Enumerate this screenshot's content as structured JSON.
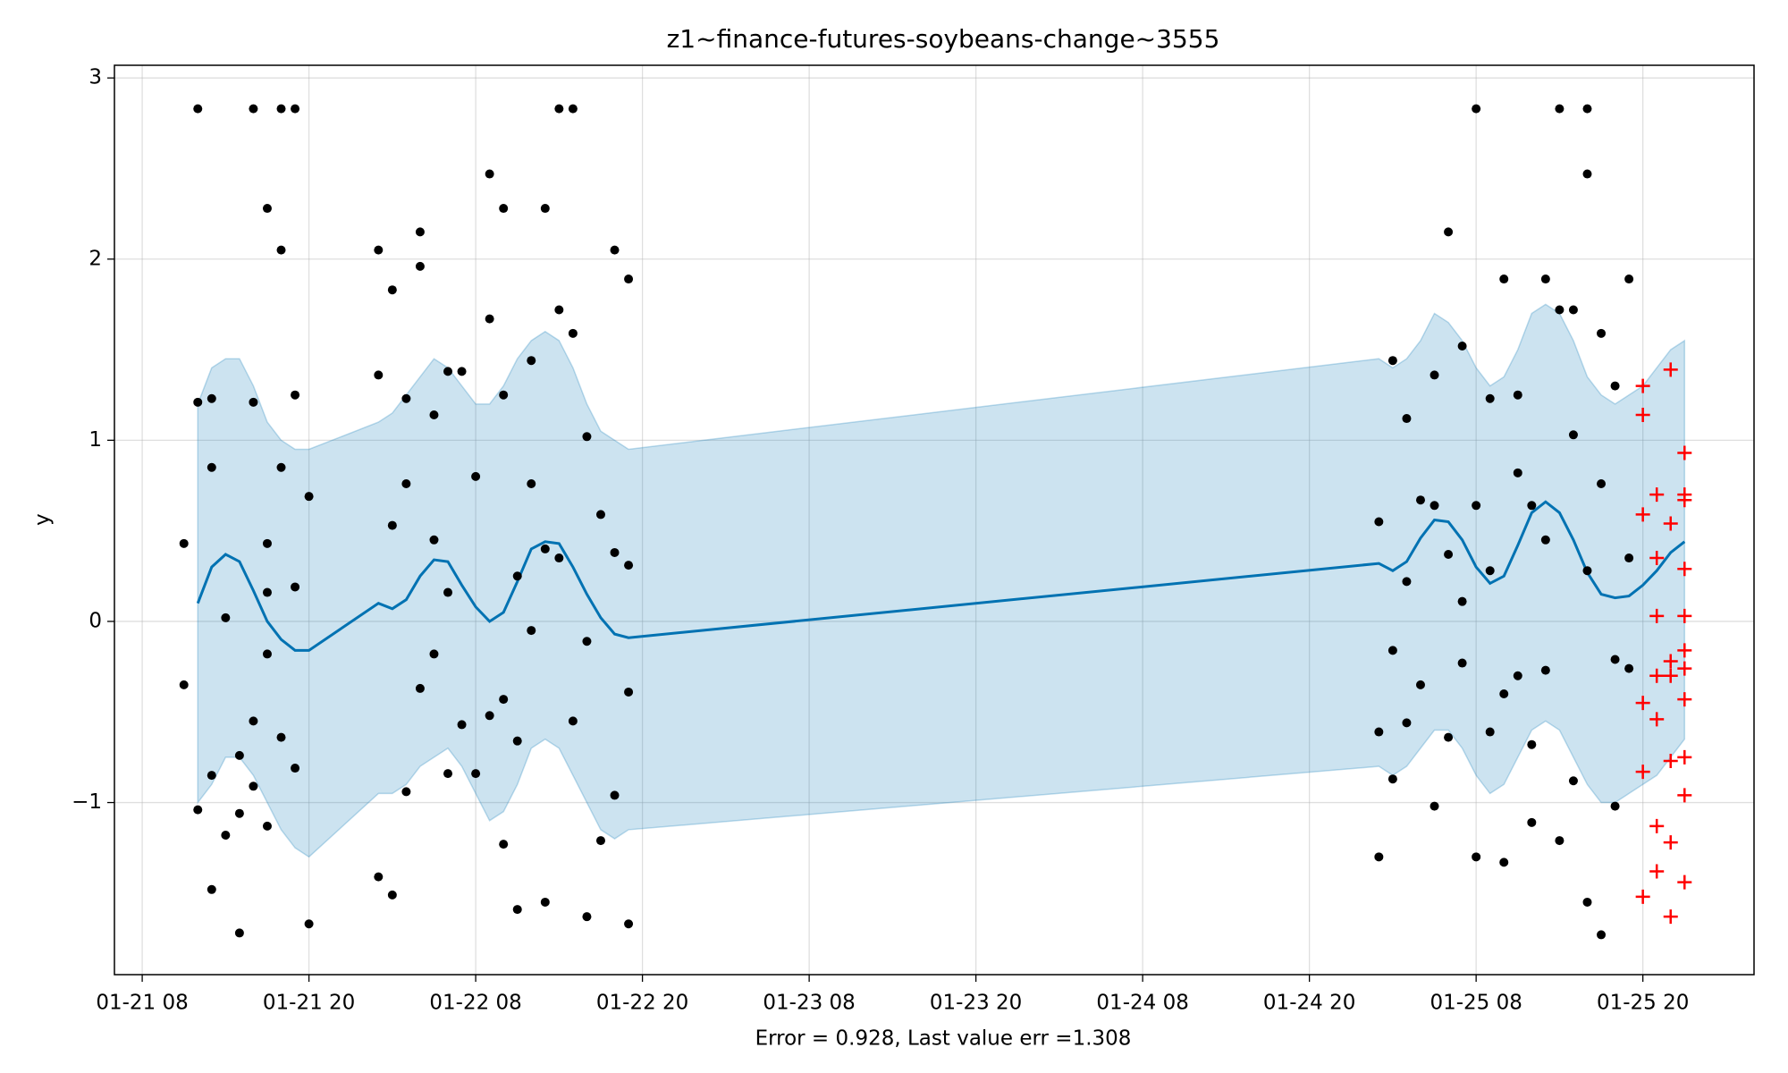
{
  "chart_data": {
    "type": "forecast",
    "title": "z1~finance-futures-soybeans-change~3555",
    "xlabel": "Error = 0.928, Last value err =1.308",
    "ylabel": "y",
    "xlim": [
      "01-21 06",
      "01-26 04"
    ],
    "xticks": [
      "01-21 08",
      "01-21 20",
      "01-22 08",
      "01-22 20",
      "01-23 08",
      "01-23 20",
      "01-24 08",
      "01-24 20",
      "01-25 08",
      "01-25 20"
    ],
    "ylim": [
      -1.95,
      3.07
    ],
    "yticks": [
      {
        "value": -1,
        "label": "−1"
      },
      0,
      1,
      2,
      3
    ],
    "grid": true,
    "forecast": {
      "color": "#0072b2",
      "band_color": "#0072b2",
      "x": [
        "01-21 12",
        "01-21 13",
        "01-21 14",
        "01-21 15",
        "01-21 16",
        "01-21 17",
        "01-21 18",
        "01-21 19",
        "01-21 20",
        "01-22 01",
        "01-22 02",
        "01-22 03",
        "01-22 04",
        "01-22 05",
        "01-22 06",
        "01-22 07",
        "01-22 08",
        "01-22 09",
        "01-22 10",
        "01-22 11",
        "01-22 12",
        "01-22 13",
        "01-22 14",
        "01-22 15",
        "01-22 16",
        "01-22 17",
        "01-22 18",
        "01-22 19",
        "01-25 01",
        "01-25 02",
        "01-25 03",
        "01-25 04",
        "01-25 05",
        "01-25 06",
        "01-25 07",
        "01-25 08",
        "01-25 09",
        "01-25 10",
        "01-25 11",
        "01-25 12",
        "01-25 13",
        "01-25 14",
        "01-25 15",
        "01-25 16",
        "01-25 17",
        "01-25 18",
        "01-25 19",
        "01-25 20",
        "01-25 21",
        "01-25 22",
        "01-25 23"
      ],
      "values": [
        0.1,
        0.3,
        0.37,
        0.33,
        0.17,
        0.0,
        -0.1,
        -0.16,
        -0.16,
        0.1,
        0.07,
        0.12,
        0.25,
        0.34,
        0.33,
        0.2,
        0.08,
        0.0,
        0.05,
        0.22,
        0.4,
        0.44,
        0.43,
        0.3,
        0.15,
        0.02,
        -0.07,
        -0.09,
        0.32,
        0.28,
        0.33,
        0.46,
        0.56,
        0.55,
        0.45,
        0.3,
        0.21,
        0.25,
        0.42,
        0.6,
        0.66,
        0.6,
        0.45,
        0.27,
        0.15,
        0.13,
        0.14,
        0.2,
        0.28,
        0.38,
        0.44
      ],
      "upper": [
        1.2,
        1.4,
        1.45,
        1.45,
        1.3,
        1.1,
        1.0,
        0.95,
        0.95,
        1.1,
        1.15,
        1.25,
        1.35,
        1.45,
        1.4,
        1.3,
        1.2,
        1.2,
        1.3,
        1.45,
        1.55,
        1.6,
        1.55,
        1.4,
        1.2,
        1.05,
        1.0,
        0.95,
        1.45,
        1.4,
        1.45,
        1.55,
        1.7,
        1.65,
        1.55,
        1.4,
        1.3,
        1.35,
        1.5,
        1.7,
        1.75,
        1.7,
        1.55,
        1.35,
        1.25,
        1.2,
        1.25,
        1.3,
        1.4,
        1.5,
        1.55
      ],
      "lower": [
        -1.0,
        -0.9,
        -0.75,
        -0.75,
        -0.85,
        -1.0,
        -1.15,
        -1.25,
        -1.3,
        -0.95,
        -0.95,
        -0.9,
        -0.8,
        -0.75,
        -0.7,
        -0.8,
        -0.95,
        -1.1,
        -1.05,
        -0.9,
        -0.7,
        -0.65,
        -0.7,
        -0.85,
        -1.0,
        -1.15,
        -1.2,
        -1.15,
        -0.8,
        -0.85,
        -0.8,
        -0.7,
        -0.6,
        -0.6,
        -0.7,
        -0.85,
        -0.95,
        -0.9,
        -0.75,
        -0.6,
        -0.55,
        -0.6,
        -0.75,
        -0.9,
        -1.0,
        -1.0,
        -0.95,
        -0.9,
        -0.85,
        -0.75,
        -0.65
      ]
    },
    "observed": {
      "color": "#000000",
      "x": [
        "01-21 11",
        "01-21 11",
        "01-21 12",
        "01-21 12",
        "01-21 12",
        "01-21 13",
        "01-21 13",
        "01-21 13",
        "01-21 13",
        "01-21 14",
        "01-21 14",
        "01-21 15",
        "01-21 15",
        "01-21 15",
        "01-21 16",
        "01-21 16",
        "01-21 16",
        "01-21 16",
        "01-21 17",
        "01-21 17",
        "01-21 17",
        "01-21 17",
        "01-21 17",
        "01-21 18",
        "01-21 18",
        "01-21 18",
        "01-21 18",
        "01-21 19",
        "01-21 19",
        "01-21 19",
        "01-21 19",
        "01-21 20",
        "01-21 20",
        "01-22 01",
        "01-22 01",
        "01-22 01",
        "01-22 02",
        "01-22 02",
        "01-22 02",
        "01-22 03",
        "01-22 03",
        "01-22 03",
        "01-22 04",
        "01-22 04",
        "01-22 04",
        "01-22 05",
        "01-22 05",
        "01-22 05",
        "01-22 06",
        "01-22 06",
        "01-22 06",
        "01-22 07",
        "01-22 07",
        "01-22 08",
        "01-22 08",
        "01-22 09",
        "01-22 09",
        "01-22 09",
        "01-22 10",
        "01-22 10",
        "01-22 10",
        "01-22 10",
        "01-22 11",
        "01-22 11",
        "01-22 11",
        "01-22 12",
        "01-22 12",
        "01-22 12",
        "01-22 13",
        "01-22 13",
        "01-22 13",
        "01-22 14",
        "01-22 14",
        "01-22 14",
        "01-22 15",
        "01-22 15",
        "01-22 15",
        "01-22 16",
        "01-22 16",
        "01-22 16",
        "01-22 17",
        "01-22 17",
        "01-22 18",
        "01-22 18",
        "01-22 18",
        "01-22 19",
        "01-22 19",
        "01-22 19",
        "01-22 19",
        "01-25 01",
        "01-25 01",
        "01-25 01",
        "01-25 02",
        "01-25 02",
        "01-25 02",
        "01-25 03",
        "01-25 03",
        "01-25 03",
        "01-25 04",
        "01-25 04",
        "01-25 05",
        "01-25 05",
        "01-25 05",
        "01-25 06",
        "01-25 06",
        "01-25 06",
        "01-25 07",
        "01-25 07",
        "01-25 07",
        "01-25 08",
        "01-25 08",
        "01-25 08",
        "01-25 09",
        "01-25 09",
        "01-25 09",
        "01-25 10",
        "01-25 10",
        "01-25 10",
        "01-25 11",
        "01-25 11",
        "01-25 11",
        "01-25 12",
        "01-25 12",
        "01-25 12",
        "01-25 13",
        "01-25 13",
        "01-25 13",
        "01-25 14",
        "01-25 14",
        "01-25 14",
        "01-25 15",
        "01-25 15",
        "01-25 15",
        "01-25 16",
        "01-25 16",
        "01-25 16",
        "01-25 16",
        "01-25 17",
        "01-25 17",
        "01-25 17",
        "01-25 18",
        "01-25 18",
        "01-25 18",
        "01-25 19",
        "01-25 19",
        "01-25 19"
      ],
      "values": [
        0.43,
        -0.35,
        1.21,
        2.83,
        -1.04,
        0.85,
        1.23,
        -1.48,
        -0.85,
        0.02,
        -1.18,
        -1.72,
        -1.06,
        -0.74,
        2.83,
        1.21,
        -0.91,
        -0.55,
        2.28,
        0.43,
        -0.18,
        -1.13,
        0.16,
        2.83,
        2.05,
        -0.64,
        0.85,
        1.25,
        2.83,
        0.19,
        -0.81,
        -1.67,
        0.69,
        1.36,
        2.05,
        -1.41,
        1.83,
        0.53,
        -1.51,
        1.23,
        0.76,
        -0.94,
        1.96,
        2.15,
        -0.37,
        1.14,
        0.45,
        -0.18,
        1.38,
        0.16,
        -0.84,
        1.38,
        -0.57,
        0.8,
        -0.84,
        1.67,
        2.47,
        -0.52,
        2.28,
        1.25,
        -0.43,
        -1.23,
        0.25,
        -0.66,
        -1.59,
        0.76,
        1.44,
        -0.05,
        2.28,
        0.4,
        -1.55,
        2.83,
        1.72,
        0.35,
        2.83,
        1.59,
        -0.55,
        1.02,
        -0.11,
        -1.63,
        0.59,
        -1.21,
        2.05,
        0.38,
        -0.96,
        1.89,
        0.31,
        -1.67,
        -0.39,
        0.55,
        -1.3,
        -0.61,
        1.44,
        -0.16,
        -0.87,
        1.12,
        0.22,
        -0.56,
        0.67,
        -0.35,
        1.36,
        0.64,
        -1.02,
        0.37,
        -0.64,
        2.15,
        1.52,
        -0.23,
        0.11,
        2.83,
        0.64,
        -1.3,
        1.23,
        0.28,
        -0.61,
        1.89,
        -0.4,
        -1.33,
        0.82,
        -0.3,
        1.25,
        0.64,
        -1.11,
        -0.68,
        1.89,
        0.45,
        -0.27,
        1.72,
        2.83,
        -1.21,
        1.03,
        -0.88,
        1.72,
        2.83,
        2.47,
        -1.55,
        0.28,
        1.59,
        0.76,
        -1.73,
        1.3,
        -0.21,
        -1.02,
        0.35,
        1.89,
        -0.26
      ]
    },
    "test": {
      "color": "#ff0000",
      "x": [
        "01-25 20",
        "01-25 20",
        "01-25 20",
        "01-25 20",
        "01-25 20",
        "01-25 20",
        "01-25 21",
        "01-25 21",
        "01-25 21",
        "01-25 21",
        "01-25 21",
        "01-25 21",
        "01-25 21",
        "01-25 22",
        "01-25 22",
        "01-25 22",
        "01-25 22",
        "01-25 22",
        "01-25 22",
        "01-25 22",
        "01-25 23",
        "01-25 23",
        "01-25 23",
        "01-25 23",
        "01-25 23",
        "01-25 23",
        "01-25 23",
        "01-25 23",
        "01-25 23",
        "01-25 23",
        "01-25 23"
      ],
      "values": [
        1.3,
        1.14,
        0.59,
        -0.45,
        -0.83,
        -1.52,
        0.7,
        0.35,
        0.03,
        -0.3,
        -0.54,
        -1.13,
        -1.38,
        1.39,
        0.54,
        -0.22,
        -0.3,
        -0.77,
        -1.22,
        -1.63,
        0.7,
        0.03,
        -0.26,
        -0.43,
        -1.44,
        0.93,
        0.67,
        0.29,
        -0.16,
        -0.75,
        -0.96
      ]
    }
  }
}
